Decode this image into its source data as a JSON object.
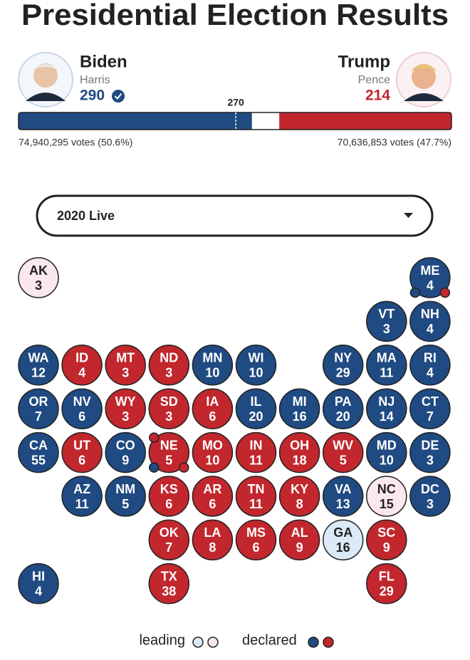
{
  "title": "Presidential Election Results",
  "candidates": [
    {
      "name": "Biden",
      "running_mate": "Harris",
      "electoral_votes": 290,
      "popular_vote": "74,940,295 votes (50.6%)",
      "party": "dem",
      "winner": true
    },
    {
      "name": "Trump",
      "running_mate": "Pence",
      "electoral_votes": 214,
      "popular_vote": "70,636,853 votes (47.7%)",
      "party": "rep",
      "winner": false
    }
  ],
  "majority": 270,
  "dropdown": "2020 Live",
  "colors": {
    "dem": {
      "declared": "#1f4a82",
      "leading": "#dce9f7"
    },
    "rep": {
      "declared": "#c1272d",
      "leading": "#fbe8ec"
    }
  },
  "grid": {
    "rows": [
      [
        {
          "state": "AK",
          "votes": 3,
          "party": "rep",
          "status": "leading"
        },
        null,
        null,
        null,
        null,
        null,
        null,
        null,
        null,
        {
          "state": "ME",
          "votes": 4,
          "party": "dem",
          "status": "declared",
          "districts": [
            {
              "party": "dem",
              "corner": "bottom-left"
            },
            {
              "party": "rep",
              "corner": "bottom-right"
            }
          ]
        }
      ],
      [
        null,
        null,
        null,
        null,
        null,
        null,
        null,
        null,
        {
          "state": "VT",
          "votes": 3,
          "party": "dem",
          "status": "declared"
        },
        {
          "state": "NH",
          "votes": 4,
          "party": "dem",
          "status": "declared"
        }
      ],
      [
        {
          "state": "WA",
          "votes": 12,
          "party": "dem",
          "status": "declared"
        },
        {
          "state": "ID",
          "votes": 4,
          "party": "rep",
          "status": "declared"
        },
        {
          "state": "MT",
          "votes": 3,
          "party": "rep",
          "status": "declared"
        },
        {
          "state": "ND",
          "votes": 3,
          "party": "rep",
          "status": "declared"
        },
        {
          "state": "MN",
          "votes": 10,
          "party": "dem",
          "status": "declared"
        },
        {
          "state": "WI",
          "votes": 10,
          "party": "dem",
          "status": "declared"
        },
        null,
        {
          "state": "NY",
          "votes": 29,
          "party": "dem",
          "status": "declared"
        },
        {
          "state": "MA",
          "votes": 11,
          "party": "dem",
          "status": "declared"
        },
        {
          "state": "RI",
          "votes": 4,
          "party": "dem",
          "status": "declared"
        }
      ],
      [
        {
          "state": "OR",
          "votes": 7,
          "party": "dem",
          "status": "declared"
        },
        {
          "state": "NV",
          "votes": 6,
          "party": "dem",
          "status": "declared"
        },
        {
          "state": "WY",
          "votes": 3,
          "party": "rep",
          "status": "declared"
        },
        {
          "state": "SD",
          "votes": 3,
          "party": "rep",
          "status": "declared"
        },
        {
          "state": "IA",
          "votes": 6,
          "party": "rep",
          "status": "declared"
        },
        {
          "state": "IL",
          "votes": 20,
          "party": "dem",
          "status": "declared"
        },
        {
          "state": "MI",
          "votes": 16,
          "party": "dem",
          "status": "declared"
        },
        {
          "state": "PA",
          "votes": 20,
          "party": "dem",
          "status": "declared"
        },
        {
          "state": "NJ",
          "votes": 14,
          "party": "dem",
          "status": "declared"
        },
        {
          "state": "CT",
          "votes": 7,
          "party": "dem",
          "status": "declared"
        }
      ],
      [
        {
          "state": "CA",
          "votes": 55,
          "party": "dem",
          "status": "declared"
        },
        {
          "state": "UT",
          "votes": 6,
          "party": "rep",
          "status": "declared"
        },
        {
          "state": "CO",
          "votes": 9,
          "party": "dem",
          "status": "declared"
        },
        {
          "state": "NE",
          "votes": 5,
          "party": "rep",
          "status": "declared",
          "districts": [
            {
              "party": "rep",
              "corner": "top-left"
            },
            {
              "party": "dem",
              "corner": "bottom-left"
            },
            {
              "party": "rep",
              "corner": "bottom-right"
            }
          ]
        },
        {
          "state": "MO",
          "votes": 10,
          "party": "rep",
          "status": "declared"
        },
        {
          "state": "IN",
          "votes": 11,
          "party": "rep",
          "status": "declared"
        },
        {
          "state": "OH",
          "votes": 18,
          "party": "rep",
          "status": "declared"
        },
        {
          "state": "WV",
          "votes": 5,
          "party": "rep",
          "status": "declared"
        },
        {
          "state": "MD",
          "votes": 10,
          "party": "dem",
          "status": "declared"
        },
        {
          "state": "DE",
          "votes": 3,
          "party": "dem",
          "status": "declared"
        }
      ],
      [
        null,
        {
          "state": "AZ",
          "votes": 11,
          "party": "dem",
          "status": "declared"
        },
        {
          "state": "NM",
          "votes": 5,
          "party": "dem",
          "status": "declared"
        },
        {
          "state": "KS",
          "votes": 6,
          "party": "rep",
          "status": "declared"
        },
        {
          "state": "AR",
          "votes": 6,
          "party": "rep",
          "status": "declared"
        },
        {
          "state": "TN",
          "votes": 11,
          "party": "rep",
          "status": "declared"
        },
        {
          "state": "KY",
          "votes": 8,
          "party": "rep",
          "status": "declared"
        },
        {
          "state": "VA",
          "votes": 13,
          "party": "dem",
          "status": "declared"
        },
        {
          "state": "NC",
          "votes": 15,
          "party": "rep",
          "status": "leading"
        },
        {
          "state": "DC",
          "votes": 3,
          "party": "dem",
          "status": "declared"
        }
      ],
      [
        null,
        null,
        null,
        {
          "state": "OK",
          "votes": 7,
          "party": "rep",
          "status": "declared"
        },
        {
          "state": "LA",
          "votes": 8,
          "party": "rep",
          "status": "declared"
        },
        {
          "state": "MS",
          "votes": 6,
          "party": "rep",
          "status": "declared"
        },
        {
          "state": "AL",
          "votes": 9,
          "party": "rep",
          "status": "declared"
        },
        {
          "state": "GA",
          "votes": 16,
          "party": "dem",
          "status": "leading"
        },
        {
          "state": "SC",
          "votes": 9,
          "party": "rep",
          "status": "declared"
        },
        null
      ],
      [
        {
          "state": "HI",
          "votes": 4,
          "party": "dem",
          "status": "declared"
        },
        null,
        null,
        {
          "state": "TX",
          "votes": 38,
          "party": "rep",
          "status": "declared"
        },
        null,
        null,
        null,
        null,
        {
          "state": "FL",
          "votes": 29,
          "party": "rep",
          "status": "declared"
        },
        null
      ]
    ]
  },
  "legend": {
    "leading": "leading",
    "declared": "declared"
  }
}
